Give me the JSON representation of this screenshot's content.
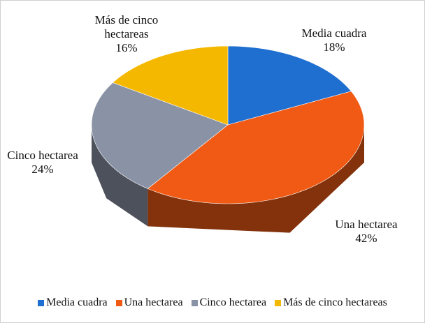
{
  "chart_data": {
    "type": "pie",
    "categories": [
      "Media cuadra",
      "Una hectarea",
      "Cinco hectarea",
      "Más de cinco hectareas"
    ],
    "values": [
      18,
      42,
      24,
      16
    ],
    "value_labels": [
      "18%",
      "42%",
      "24%",
      "16%"
    ],
    "colors": [
      "#1f6fd1",
      "#f05a14",
      "#8a93a6",
      "#f5b800"
    ],
    "legend": "bottom"
  }
}
